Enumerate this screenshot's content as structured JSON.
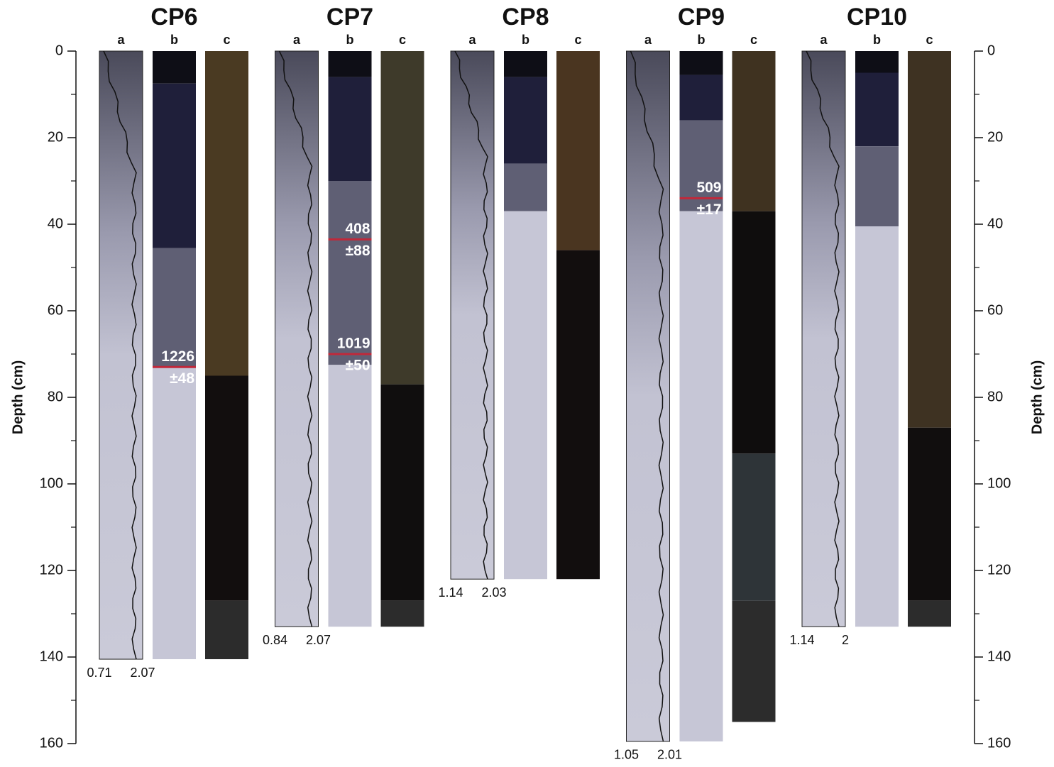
{
  "chart_data": {
    "type": "core-log",
    "ylabel": "Depth (cm)",
    "ylim": [
      0,
      160
    ],
    "yticks": [
      0,
      20,
      40,
      60,
      80,
      100,
      120,
      140,
      160
    ],
    "yminorticks": [
      10,
      30,
      50,
      70,
      90,
      110,
      130,
      150
    ],
    "cores": [
      {
        "name": "CP6",
        "columns": [
          "a",
          "b",
          "c"
        ],
        "depth": 140.5,
        "density_range": [
          0.71,
          2.07
        ],
        "b_layers": [
          {
            "from": 0,
            "to": 7.5,
            "color": "#0e0e16"
          },
          {
            "from": 7.5,
            "to": 45.5,
            "color": "#1f1f3a"
          },
          {
            "from": 45.5,
            "to": 73,
            "color": "#5f5f74"
          },
          {
            "from": 73,
            "to": 140.5,
            "color": "#c6c6d6"
          }
        ],
        "c_layers": [
          {
            "from": 0,
            "to": 75,
            "color": "#4a3a22"
          },
          {
            "from": 75,
            "to": 127,
            "color": "#120e0e"
          },
          {
            "from": 127,
            "to": 140.5,
            "color": "#2c2c2c"
          }
        ],
        "dates": [
          {
            "depth": 73,
            "age": "1226",
            "error": "±48"
          }
        ]
      },
      {
        "name": "CP7",
        "columns": [
          "a",
          "b",
          "c"
        ],
        "depth": 133,
        "density_range": [
          0.84,
          2.07
        ],
        "b_layers": [
          {
            "from": 0,
            "to": 6,
            "color": "#0e0e16"
          },
          {
            "from": 6,
            "to": 30,
            "color": "#1f1f3a"
          },
          {
            "from": 30,
            "to": 72.5,
            "color": "#5f5f74"
          },
          {
            "from": 72.5,
            "to": 133,
            "color": "#c6c6d6"
          }
        ],
        "c_layers": [
          {
            "from": 0,
            "to": 77,
            "color": "#3e3a2a"
          },
          {
            "from": 77,
            "to": 127,
            "color": "#100e0e"
          },
          {
            "from": 127,
            "to": 133,
            "color": "#2c2c2c"
          }
        ],
        "dates": [
          {
            "depth": 43.5,
            "age": "408",
            "error": "±88"
          },
          {
            "depth": 70,
            "age": "1019",
            "error": "±50"
          }
        ]
      },
      {
        "name": "CP8",
        "columns": [
          "a",
          "b",
          "c"
        ],
        "depth": 122,
        "density_range": [
          1.14,
          2.03
        ],
        "b_layers": [
          {
            "from": 0,
            "to": 6,
            "color": "#0e0e16"
          },
          {
            "from": 6,
            "to": 26,
            "color": "#1f1f3a"
          },
          {
            "from": 26,
            "to": 37,
            "color": "#5f5f74"
          },
          {
            "from": 37,
            "to": 122,
            "color": "#c6c6d6"
          }
        ],
        "c_layers": [
          {
            "from": 0,
            "to": 46,
            "color": "#4a3520"
          },
          {
            "from": 46,
            "to": 122,
            "color": "#120e0e"
          }
        ],
        "dates": []
      },
      {
        "name": "CP9",
        "columns": [
          "a",
          "b",
          "c"
        ],
        "depth": 159.5,
        "density_range": [
          1.05,
          2.01
        ],
        "b_layers": [
          {
            "from": 0,
            "to": 5.5,
            "color": "#0e0e16"
          },
          {
            "from": 5.5,
            "to": 16,
            "color": "#1f1f3a"
          },
          {
            "from": 16,
            "to": 37,
            "color": "#5f5f74"
          },
          {
            "from": 37,
            "to": 159.5,
            "color": "#c6c6d6"
          }
        ],
        "c_layers": [
          {
            "from": 0,
            "to": 37,
            "color": "#3f3220"
          },
          {
            "from": 37,
            "to": 93,
            "color": "#0f0d0d"
          },
          {
            "from": 93,
            "to": 127,
            "color": "#2e3438"
          },
          {
            "from": 127,
            "to": 155,
            "color": "#2c2c2c"
          }
        ],
        "dates": [
          {
            "depth": 34,
            "age": "509",
            "error": "±17"
          }
        ]
      },
      {
        "name": "CP10",
        "columns": [
          "a",
          "b",
          "c"
        ],
        "depth": 133,
        "density_range": [
          1.14,
          2.0
        ],
        "b_layers": [
          {
            "from": 0,
            "to": 5,
            "color": "#0e0e16"
          },
          {
            "from": 5,
            "to": 22,
            "color": "#1f1f3a"
          },
          {
            "from": 22,
            "to": 40.5,
            "color": "#5f5f74"
          },
          {
            "from": 40.5,
            "to": 133,
            "color": "#c6c6d6"
          }
        ],
        "c_layers": [
          {
            "from": 0,
            "to": 87,
            "color": "#3e3222"
          },
          {
            "from": 87,
            "to": 127,
            "color": "#110e0e"
          },
          {
            "from": 127,
            "to": 133,
            "color": "#2c2c2c"
          }
        ],
        "dates": []
      }
    ]
  }
}
